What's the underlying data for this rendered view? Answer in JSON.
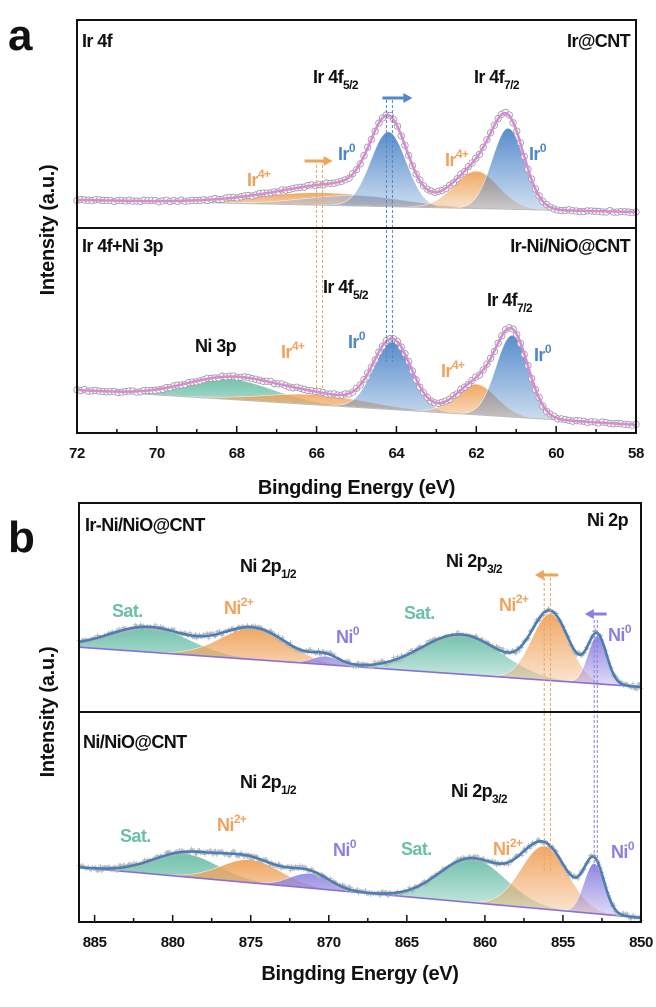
{
  "chart_data": [
    {
      "panel": "a",
      "type": "line",
      "xlabel": "Bingding Energy (eV)",
      "ylabel": "Intensity (a.u.)",
      "xlim": [
        72,
        58
      ],
      "xticks": [
        "72",
        "70",
        "68",
        "66",
        "64",
        "62",
        "60",
        "58"
      ],
      "subplots": [
        {
          "region": "Ir 4f",
          "sample": "Ir@CNT",
          "ylim": [
            0,
            100
          ],
          "baseline": [
            13.5,
            7.7
          ],
          "components": [
            {
              "name": "Ir4+ 4f5/2",
              "center": 65.8,
              "fwhm": 4.0,
              "height": 6,
              "color": "#f0a35c"
            },
            {
              "name": "Ir4+ sat",
              "center": 65.0,
              "fwhm": 3.0,
              "height": 5,
              "color": "#b9b9c3"
            },
            {
              "name": "Ir0 4f5/2",
              "center": 64.2,
              "fwhm": 1.05,
              "height": 36,
              "color": "#4f87c9"
            },
            {
              "name": "Ir4+ 4f7/2",
              "center": 62.0,
              "fwhm": 1.3,
              "height": 18,
              "color": "#f0a35c"
            },
            {
              "name": "Ir0 4f7/2",
              "center": 61.2,
              "fwhm": 0.95,
              "height": 39,
              "color": "#4f87c9"
            }
          ],
          "annotations": [
            {
              "base": "Ir 4f",
              "sub": "5/2",
              "color": "#111111"
            },
            {
              "base": "Ir 4f",
              "sub": "7/2",
              "color": "#111111"
            },
            {
              "base": "Ir",
              "sup": "4+",
              "color": "#f0a35c"
            },
            {
              "base": "Ir",
              "sup": "0",
              "color": "#4f87c9"
            },
            {
              "base": "Ir",
              "sup": "4+",
              "color": "#f0a35c"
            },
            {
              "base": "Ir",
              "sup": "0",
              "color": "#4f87c9"
            }
          ]
        },
        {
          "region": "Ir 4f+Ni 3p",
          "sample": "Ir-Ni/NiO@CNT",
          "ylim": [
            0,
            100
          ],
          "baseline": [
            21,
            4
          ],
          "components": [
            {
              "name": "Ni 3p",
              "center": 68.2,
              "fwhm": 2.6,
              "height": 10,
              "color": "#6bbfa8"
            },
            {
              "name": "Ir4+ 4f5/2",
              "center": 66.0,
              "fwhm": 3.0,
              "height": 5,
              "color": "#f0a35c"
            },
            {
              "name": "Ir0 4f5/2",
              "center": 64.1,
              "fwhm": 1.1,
              "height": 33,
              "color": "#4f87c9"
            },
            {
              "name": "Ir4+ 4f7/2",
              "center": 62.0,
              "fwhm": 1.2,
              "height": 15,
              "color": "#f0a35c"
            },
            {
              "name": "Ir0 4f7/2",
              "center": 61.1,
              "fwhm": 0.95,
              "height": 40,
              "color": "#4f87c9"
            }
          ],
          "annotations": [
            {
              "base": "Ir 4f",
              "sub": "5/2",
              "color": "#111111"
            },
            {
              "base": "Ir 4f",
              "sub": "7/2",
              "color": "#111111"
            },
            {
              "base": "Ni 3p",
              "color": "#111111"
            },
            {
              "base": "Ir",
              "sup": "4+",
              "color": "#f0a35c"
            },
            {
              "base": "Ir",
              "sup": "0",
              "color": "#4f87c9"
            },
            {
              "base": "Ir",
              "sup": "4+",
              "color": "#f0a35c"
            },
            {
              "base": "Ir",
              "sup": "0",
              "color": "#4f87c9"
            }
          ]
        }
      ]
    },
    {
      "panel": "b",
      "type": "line",
      "xlabel": "Bingding Energy (eV)",
      "ylabel": "Intensity (a.u.)",
      "xlim": [
        886,
        850
      ],
      "xticks": [
        "885",
        "880",
        "875",
        "870",
        "865",
        "860",
        "855",
        "850"
      ],
      "subplots": [
        {
          "region": "Ni 2p",
          "sample": "Ir-Ni/NiO@CNT",
          "ylim": [
            0,
            100
          ],
          "baseline": [
            31,
            12
          ],
          "components": [
            {
              "name": "Sat. 2p1/2",
              "center": 881.5,
              "fwhm": 6.0,
              "height": 12,
              "color": "#6bbfa8"
            },
            {
              "name": "Ni2+ 2p1/2",
              "center": 874.8,
              "fwhm": 5.0,
              "height": 15,
              "color": "#f0a35c"
            },
            {
              "name": "Ni0 2p1/2",
              "center": 870.2,
              "fwhm": 2.0,
              "height": 4,
              "color": "#8b7fe0"
            },
            {
              "name": "Sat. 2p3/2",
              "center": 861.5,
              "fwhm": 6.0,
              "height": 19,
              "color": "#6bbfa8"
            },
            {
              "name": "Ni2+ 2p3/2",
              "center": 855.8,
              "fwhm": 2.8,
              "height": 32,
              "color": "#f0a35c"
            },
            {
              "name": "Ni0 2p3/2",
              "center": 852.8,
              "fwhm": 1.4,
              "height": 23,
              "color": "#8b7fe0"
            }
          ],
          "annotations": [
            {
              "base": "Ni 2p",
              "sub": "1/2",
              "color": "#111111"
            },
            {
              "base": "Ni 2p",
              "sub": "3/2",
              "color": "#111111"
            },
            {
              "base": "Sat.",
              "color": "#6bbfa8"
            },
            {
              "base": "Ni",
              "sup": "2+",
              "color": "#f0a35c"
            },
            {
              "base": "Ni",
              "sup": "0",
              "color": "#8b7fe0"
            },
            {
              "base": "Sat.",
              "color": "#6bbfa8"
            },
            {
              "base": "Ni",
              "sup": "2+",
              "color": "#f0a35c"
            },
            {
              "base": "Ni",
              "sup": "0",
              "color": "#8b7fe0"
            }
          ]
        },
        {
          "region": "",
          "sample": "Ni/NiO@CNT",
          "ylim": [
            0,
            100
          ],
          "baseline": [
            26,
            2
          ],
          "components": [
            {
              "name": "Sat. 2p1/2",
              "center": 879.2,
              "fwhm": 5.0,
              "height": 11,
              "color": "#6bbfa8"
            },
            {
              "name": "Ni2+ 2p1/2",
              "center": 875.0,
              "fwhm": 4.5,
              "height": 11,
              "color": "#f0a35c"
            },
            {
              "name": "Ni0 2p1/2",
              "center": 871.2,
              "fwhm": 3.0,
              "height": 7,
              "color": "#8b7fe0"
            },
            {
              "name": "Sat. 2p3/2",
              "center": 860.8,
              "fwhm": 5.0,
              "height": 21,
              "color": "#6bbfa8"
            },
            {
              "name": "Ni2+ 2p3/2",
              "center": 856.2,
              "fwhm": 3.5,
              "height": 30,
              "color": "#f0a35c"
            },
            {
              "name": "Ni0 2p3/2",
              "center": 853.0,
              "fwhm": 1.5,
              "height": 24,
              "color": "#8b7fe0"
            }
          ],
          "annotations": [
            {
              "base": "Ni 2p",
              "sub": "1/2",
              "color": "#111111"
            },
            {
              "base": "Ni 2p",
              "sub": "3/2",
              "color": "#111111"
            },
            {
              "base": "Sat.",
              "color": "#6bbfa8"
            },
            {
              "base": "Ni",
              "sup": "2+",
              "color": "#f0a35c"
            },
            {
              "base": "Ni",
              "sup": "0",
              "color": "#8b7fe0"
            },
            {
              "base": "Sat.",
              "color": "#6bbfa8"
            },
            {
              "base": "Ni",
              "sup": "2+",
              "color": "#f0a35c"
            },
            {
              "base": "Ni",
              "sup": "0",
              "color": "#8b7fe0"
            }
          ]
        }
      ]
    }
  ]
}
